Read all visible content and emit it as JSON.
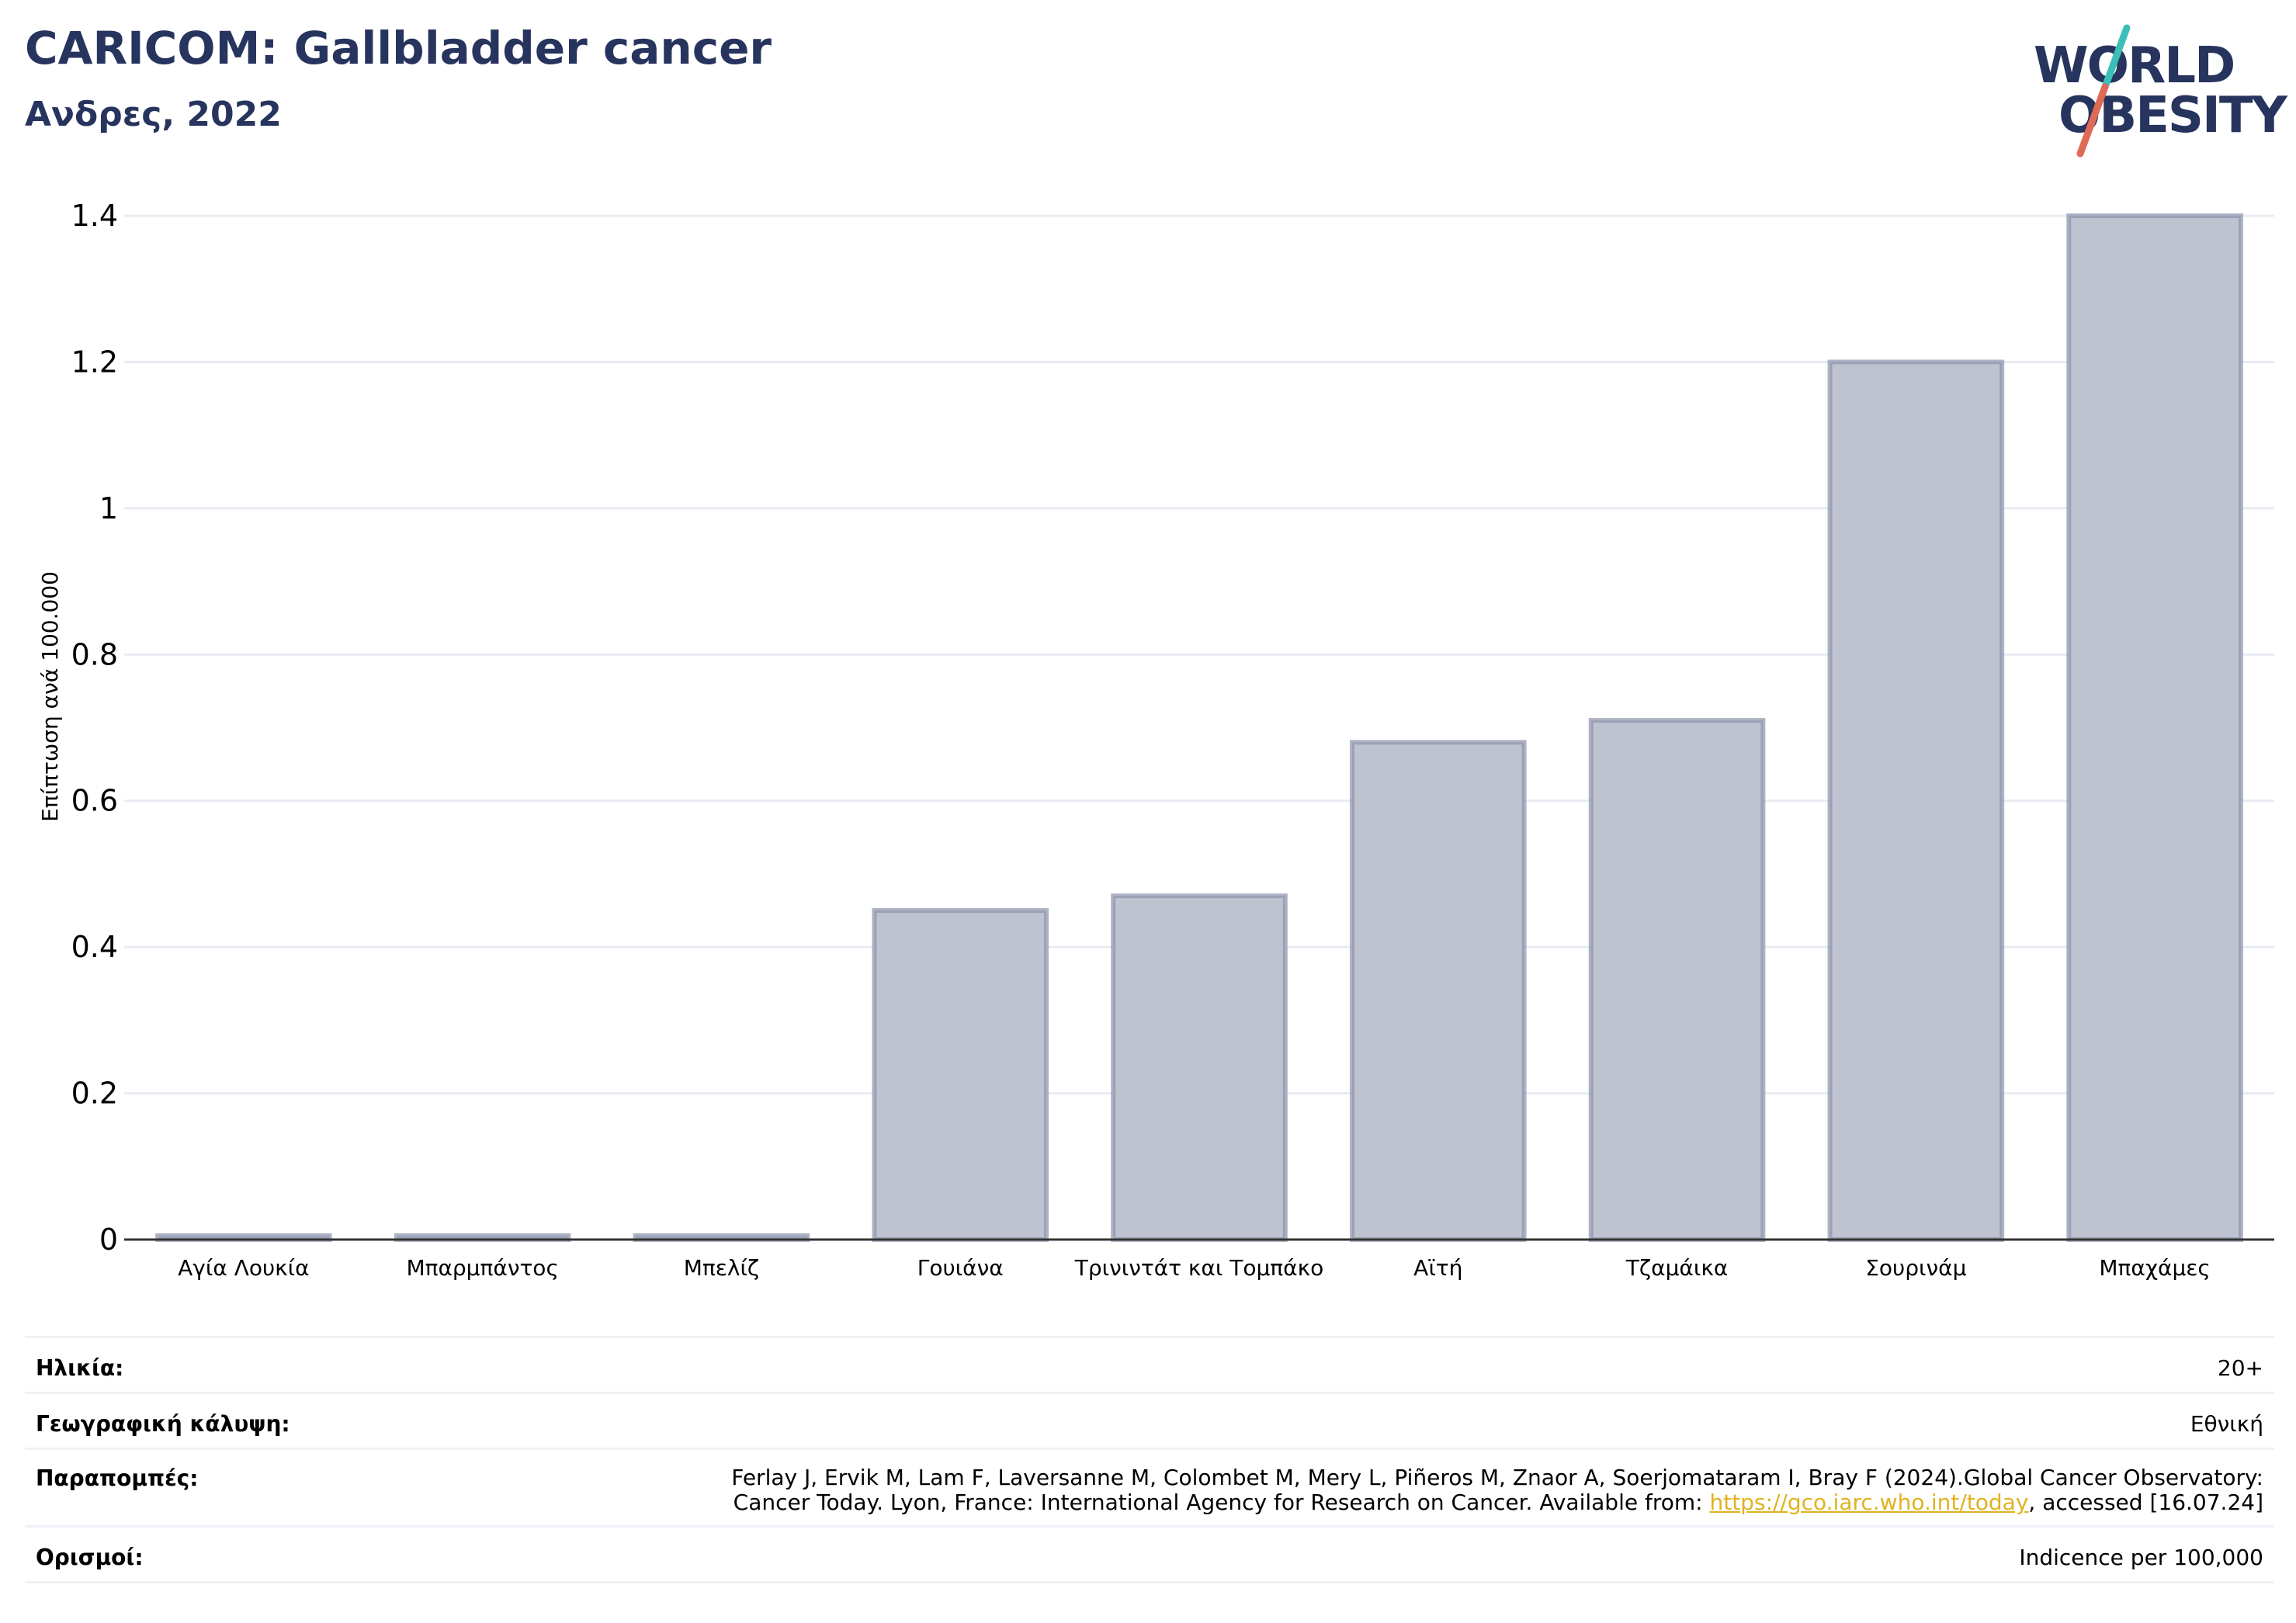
{
  "header": {
    "title": "CARICOM: Gallbladder cancer",
    "subtitle": "Ανδρες, 2022"
  },
  "logo": {
    "line1": "WORLD",
    "line2": "OBESITY",
    "brand_color": "#27345e",
    "accent_teal": "#3bbfb8",
    "accent_coral": "#e06a55"
  },
  "chart_data": {
    "type": "bar",
    "ylabel": "Επίπτωση ανά 100.000",
    "xlabel": "",
    "ylim": [
      0,
      1.4
    ],
    "yticks": [
      0,
      0.2,
      0.4,
      0.6,
      0.8,
      1,
      1.2,
      1.4
    ],
    "ytick_labels": [
      "0",
      "0.2",
      "0.4",
      "0.6",
      "0.8",
      "1",
      "1.2",
      "1.4"
    ],
    "categories": [
      "Αγία Λουκία",
      "Μπαρμπάντος",
      "Μπελίζ",
      "Γουιάνα",
      "Τρινιντάτ και Τομπάκο",
      "Αϊτή",
      "Τζαμάικα",
      "Σουρινάμ",
      "Μπαχάμες"
    ],
    "values": [
      0,
      0,
      0,
      0.45,
      0.47,
      0.68,
      0.71,
      1.2,
      1.4
    ],
    "bar_fill": "#bfc3d0",
    "bar_stroke": "#8c93ab",
    "grid": true
  },
  "meta": {
    "age_label": "Ηλικία:",
    "age_value": "20+",
    "coverage_label": "Γεωγραφική κάλυψη:",
    "coverage_value": "Εθνική",
    "references_label": "Παραπομπές:",
    "references_line1": "Ferlay J, Ervik M, Lam F, Laversanne M, Colombet M, Mery L, Piñeros M, Znaor A, Soerjomataram I, Bray F (2024).Global Cancer Observatory:",
    "references_line2_pre": "Cancer Today. Lyon, France: International Agency for Research on Cancer. Available from: ",
    "references_link": "https://gco.iarc.who.int/today",
    "references_line2_post": ", accessed [16.07.24]",
    "definitions_label": "Ορισμοί:",
    "definitions_value": "Indicence per 100,000"
  }
}
